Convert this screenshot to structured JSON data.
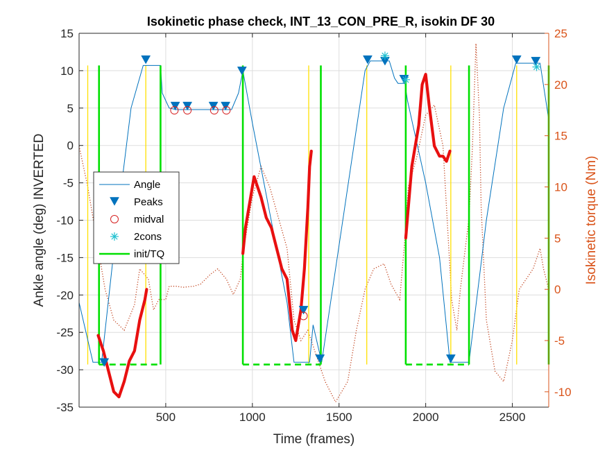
{
  "chart_data": {
    "type": "line",
    "title": "Isokinetic phase check, INT_13_CON_PRE_R, isokin DF 30",
    "xlabel": "Time (frames)",
    "ylabel_left": "Ankle angle (deg) INVERTED",
    "ylabel_right": "Isokinetic torque (Nm)",
    "xlim": [
      0,
      2710
    ],
    "ylim_left": [
      -35,
      15
    ],
    "ylim_right": [
      -11.5,
      25
    ],
    "x_ticks": [
      500,
      1000,
      1500,
      2000,
      2500
    ],
    "y_ticks_left": [
      -35,
      -30,
      -25,
      -20,
      -15,
      -10,
      -5,
      0,
      5,
      10,
      15
    ],
    "y_ticks_right": [
      -10,
      -5,
      0,
      5,
      10,
      15,
      20,
      25
    ],
    "grid": true,
    "legend_position": "middle-left",
    "colors": {
      "angle": "#0072BD",
      "peaks": "#0072BD",
      "midval": "#D62020",
      "cons": "#20C0D0",
      "init": "#00E000",
      "yellow": "#FFE000",
      "torque_dotted": "#C0401A",
      "torque_thick": "#E81010",
      "right_axis": "#D95319"
    },
    "series": [
      {
        "name": "Angle",
        "style": "line",
        "points": [
          [
            0,
            -21
          ],
          [
            40,
            -25
          ],
          [
            80,
            -29
          ],
          [
            130,
            -29
          ],
          [
            220,
            -10
          ],
          [
            300,
            5
          ],
          [
            370,
            10.7
          ],
          [
            470,
            10.7
          ],
          [
            480,
            7
          ],
          [
            520,
            5
          ],
          [
            560,
            4.8
          ],
          [
            880,
            4.8
          ],
          [
            920,
            7
          ],
          [
            945,
            10
          ],
          [
            1000,
            3
          ],
          [
            1100,
            -9
          ],
          [
            1200,
            -21
          ],
          [
            1240,
            -29
          ],
          [
            1330,
            -29
          ],
          [
            1350,
            -24
          ],
          [
            1400,
            -29
          ],
          [
            1650,
            10
          ],
          [
            1680,
            11.3
          ],
          [
            1790,
            11.3
          ],
          [
            1820,
            9
          ],
          [
            1840,
            8.3
          ],
          [
            1880,
            8.3
          ],
          [
            1895,
            6
          ],
          [
            2000,
            -5
          ],
          [
            2080,
            -15
          ],
          [
            2140,
            -29
          ],
          [
            2250,
            -29
          ],
          [
            2350,
            -10
          ],
          [
            2450,
            5
          ],
          [
            2520,
            11
          ],
          [
            2660,
            11
          ],
          [
            2710,
            3.5
          ]
        ]
      },
      {
        "name": "Peaks",
        "style": "marker",
        "points": [
          [
            145,
            -29
          ],
          [
            385,
            11.5
          ],
          [
            555,
            5.3
          ],
          [
            625,
            5.3
          ],
          [
            775,
            5.3
          ],
          [
            845,
            5.3
          ],
          [
            940,
            10
          ],
          [
            1295,
            -22
          ],
          [
            1390,
            -28.5
          ],
          [
            1665,
            11.5
          ],
          [
            1765,
            11.3
          ],
          [
            1875,
            8.9
          ],
          [
            2145,
            -28.5
          ],
          [
            2525,
            11.5
          ],
          [
            2635,
            11.3
          ]
        ]
      },
      {
        "name": "midval",
        "style": "marker",
        "points": [
          [
            550,
            4.7
          ],
          [
            625,
            4.7
          ],
          [
            780,
            4.7
          ],
          [
            850,
            4.7
          ],
          [
            1295,
            -22.8
          ]
        ]
      },
      {
        "name": "2cons",
        "style": "marker",
        "points": [
          [
            1765,
            12
          ],
          [
            1885,
            8.8
          ],
          [
            2640,
            10.5
          ]
        ]
      },
      {
        "name": "init/TQ",
        "style": "line",
        "vertical_lines_x": [
          115,
          470,
          945,
          1395,
          1885,
          2250,
          2710
        ],
        "dashed_segments": [
          [
            [
              115,
              -29.3
            ],
            [
              470,
              -29.3
            ]
          ],
          [
            [
              945,
              -29.3
            ],
            [
              1395,
              -29.3
            ]
          ],
          [
            [
              1885,
              -29.3
            ],
            [
              2250,
              -29.3
            ]
          ]
        ]
      }
    ],
    "unlabeled_lines": {
      "yellow_vertical_x": [
        50,
        385,
        1325,
        1660,
        2145,
        2525
      ],
      "torque_dotted": [
        [
          0,
          14
        ],
        [
          50,
          10
        ],
        [
          90,
          6
        ],
        [
          150,
          0
        ],
        [
          200,
          -3
        ],
        [
          260,
          -4
        ],
        [
          320,
          -1.5
        ],
        [
          350,
          2
        ],
        [
          400,
          1
        ],
        [
          430,
          -2
        ],
        [
          460,
          -1
        ],
        [
          500,
          -1
        ],
        [
          520,
          0.3
        ],
        [
          560,
          0.3
        ],
        [
          600,
          0.2
        ],
        [
          660,
          0.3
        ],
        [
          700,
          0.5
        ],
        [
          760,
          1.5
        ],
        [
          800,
          2
        ],
        [
          850,
          1
        ],
        [
          890,
          -0.5
        ],
        [
          930,
          1
        ],
        [
          950,
          4
        ],
        [
          1000,
          9
        ],
        [
          1050,
          12
        ],
        [
          1100,
          10
        ],
        [
          1150,
          7
        ],
        [
          1200,
          4
        ],
        [
          1240,
          -3
        ],
        [
          1280,
          -5
        ],
        [
          1320,
          -4
        ],
        [
          1360,
          -6
        ],
        [
          1420,
          -9
        ],
        [
          1480,
          -11
        ],
        [
          1550,
          -9
        ],
        [
          1600,
          -4
        ],
        [
          1650,
          0
        ],
        [
          1700,
          2
        ],
        [
          1760,
          2.5
        ],
        [
          1800,
          0.5
        ],
        [
          1850,
          -1
        ],
        [
          1880,
          5
        ],
        [
          1900,
          10
        ],
        [
          1950,
          13
        ],
        [
          2000,
          17
        ],
        [
          2050,
          18
        ],
        [
          2100,
          14
        ],
        [
          2150,
          -1
        ],
        [
          2180,
          -4
        ],
        [
          2200,
          0
        ],
        [
          2250,
          7
        ],
        [
          2270,
          14
        ],
        [
          2290,
          24
        ],
        [
          2310,
          17
        ],
        [
          2320,
          8
        ],
        [
          2350,
          -3
        ],
        [
          2400,
          -8
        ],
        [
          2450,
          -9
        ],
        [
          2500,
          -5
        ],
        [
          2540,
          0
        ],
        [
          2580,
          1
        ],
        [
          2620,
          2
        ],
        [
          2660,
          4
        ],
        [
          2680,
          2
        ],
        [
          2710,
          0
        ]
      ],
      "torque_thick_segments": [
        [
          [
            110,
            -4.5
          ],
          [
            140,
            -6
          ],
          [
            170,
            -8
          ],
          [
            200,
            -10
          ],
          [
            230,
            -10.5
          ],
          [
            260,
            -9
          ],
          [
            290,
            -7
          ],
          [
            320,
            -6
          ],
          [
            350,
            -3
          ],
          [
            380,
            -1
          ],
          [
            390,
            0
          ]
        ],
        [
          [
            945,
            3.5
          ],
          [
            960,
            6
          ],
          [
            990,
            9
          ],
          [
            1010,
            11
          ],
          [
            1030,
            10
          ],
          [
            1050,
            9
          ],
          [
            1080,
            7
          ],
          [
            1110,
            6
          ],
          [
            1140,
            4
          ],
          [
            1170,
            2
          ],
          [
            1200,
            1
          ],
          [
            1230,
            -4
          ],
          [
            1250,
            -5
          ],
          [
            1280,
            -2
          ],
          [
            1300,
            2
          ],
          [
            1320,
            8
          ],
          [
            1330,
            12
          ],
          [
            1340,
            13.5
          ]
        ],
        [
          [
            1885,
            5
          ],
          [
            1900,
            8
          ],
          [
            1920,
            12
          ],
          [
            1940,
            14
          ],
          [
            1960,
            16
          ],
          [
            1980,
            20
          ],
          [
            2000,
            21
          ],
          [
            2020,
            18
          ],
          [
            2050,
            14
          ],
          [
            2080,
            13
          ],
          [
            2100,
            13
          ],
          [
            2120,
            12.5
          ],
          [
            2140,
            13.5
          ]
        ]
      ]
    }
  }
}
